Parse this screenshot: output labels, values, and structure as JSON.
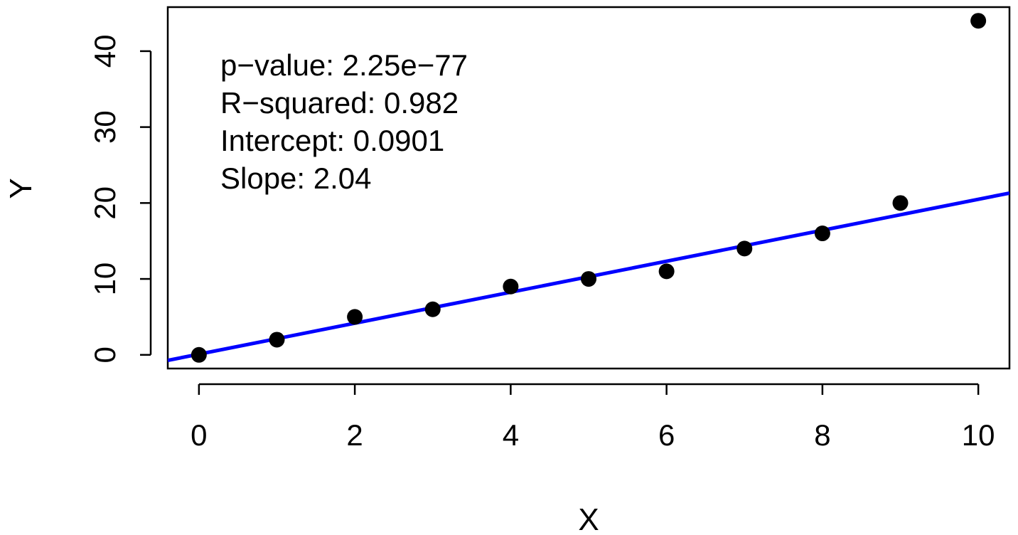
{
  "chart_data": {
    "type": "scatter",
    "title": "",
    "xlabel": "X",
    "ylabel": "Y",
    "xlim": [
      -0.4,
      10.4
    ],
    "ylim": [
      -1.8,
      45.8
    ],
    "x_ticks": [
      0,
      2,
      4,
      6,
      8,
      10
    ],
    "x_tick_labels": [
      "0",
      "2",
      "4",
      "6",
      "8",
      "10"
    ],
    "y_ticks": [
      0,
      10,
      20,
      30,
      40
    ],
    "y_tick_labels": [
      "0",
      "10",
      "20",
      "30",
      "40"
    ],
    "grid": false,
    "series": [
      {
        "x": [
          0,
          1,
          2,
          3,
          4,
          5,
          6,
          7,
          8,
          9,
          10
        ],
        "y": [
          0,
          2,
          5,
          6,
          9,
          10,
          11,
          14,
          16,
          20,
          44
        ],
        "color": "#000000"
      }
    ],
    "fit_line": {
      "intercept": 0.0901,
      "slope": 2.04,
      "color": "#0000ff"
    },
    "annotations": [
      "p−value: 2.25e−77",
      "R−squared: 0.982",
      "Intercept: 0.0901",
      "Slope: 2.04"
    ]
  }
}
